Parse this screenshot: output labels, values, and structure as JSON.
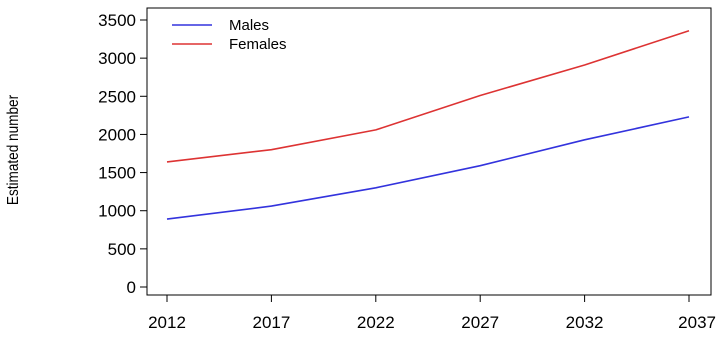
{
  "chart_data": {
    "type": "line",
    "title": "",
    "xlabel": "",
    "ylabel": "Estimated number",
    "x": [
      2012,
      2017,
      2022,
      2027,
      2032,
      2037
    ],
    "x_ticks": [
      "2012",
      "2017",
      "2022",
      "2027",
      "2032",
      "2037"
    ],
    "y_ticks": [
      "0",
      "500",
      "1000",
      "1500",
      "2000",
      "2500",
      "3000",
      "3500"
    ],
    "xlim": [
      2012,
      2037
    ],
    "ylim": [
      0,
      3500
    ],
    "grid": false,
    "legend_position": "top-left",
    "series": [
      {
        "name": "Males",
        "color": "#3333dd",
        "values": [
          890,
          1060,
          1300,
          1590,
          1930,
          2230
        ]
      },
      {
        "name": "Females",
        "color": "#dd3333",
        "values": [
          1640,
          1800,
          2060,
          2510,
          2910,
          3360
        ]
      }
    ]
  }
}
